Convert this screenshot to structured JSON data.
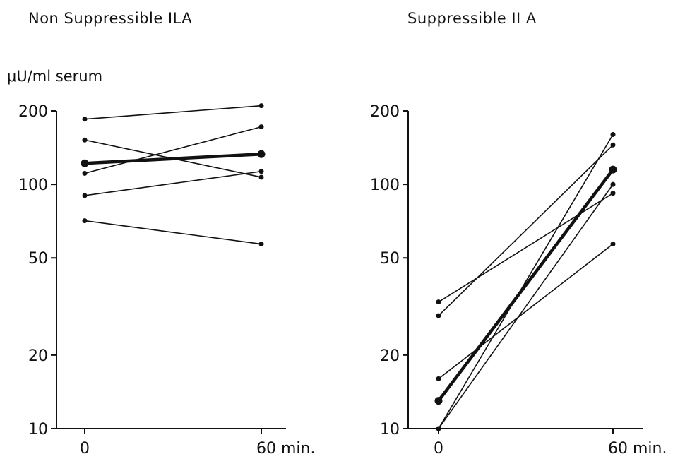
{
  "chart_data": [
    {
      "type": "line",
      "title": "Non Suppressible ILA",
      "ylabel": "μU/ml serum",
      "yscale": "log",
      "ylim": [
        10,
        200
      ],
      "yticks": [
        10,
        20,
        50,
        100,
        200
      ],
      "ytick_labels": [
        "10",
        "20",
        "50",
        "100",
        "200"
      ],
      "x": [
        0,
        60
      ],
      "xtick_labels": [
        "0",
        "60 min."
      ],
      "grid": false,
      "series": [
        {
          "values": [
            185,
            210
          ],
          "bold": false
        },
        {
          "values": [
            152,
            107
          ],
          "bold": false
        },
        {
          "values": [
            111,
            172
          ],
          "bold": false
        },
        {
          "values": [
            90,
            113
          ],
          "bold": false
        },
        {
          "values": [
            71,
            57
          ],
          "bold": false
        },
        {
          "values": [
            122,
            133
          ],
          "bold": true
        }
      ]
    },
    {
      "type": "line",
      "title": "Suppressible II A",
      "ylabel": "",
      "yscale": "log",
      "ylim": [
        10,
        200
      ],
      "yticks": [
        10,
        20,
        50,
        100,
        200
      ],
      "ytick_labels": [
        "10",
        "20",
        "50",
        "100",
        "200"
      ],
      "x": [
        0,
        60
      ],
      "xtick_labels": [
        "0",
        "60 min."
      ],
      "grid": false,
      "series": [
        {
          "values": [
            33,
            92
          ],
          "bold": false
        },
        {
          "values": [
            29,
            145
          ],
          "bold": false
        },
        {
          "values": [
            16,
            57
          ],
          "bold": false
        },
        {
          "values": [
            10,
            160
          ],
          "bold": false
        },
        {
          "values": [
            10,
            100
          ],
          "bold": false
        },
        {
          "values": [
            13,
            115
          ],
          "bold": true
        }
      ]
    }
  ]
}
